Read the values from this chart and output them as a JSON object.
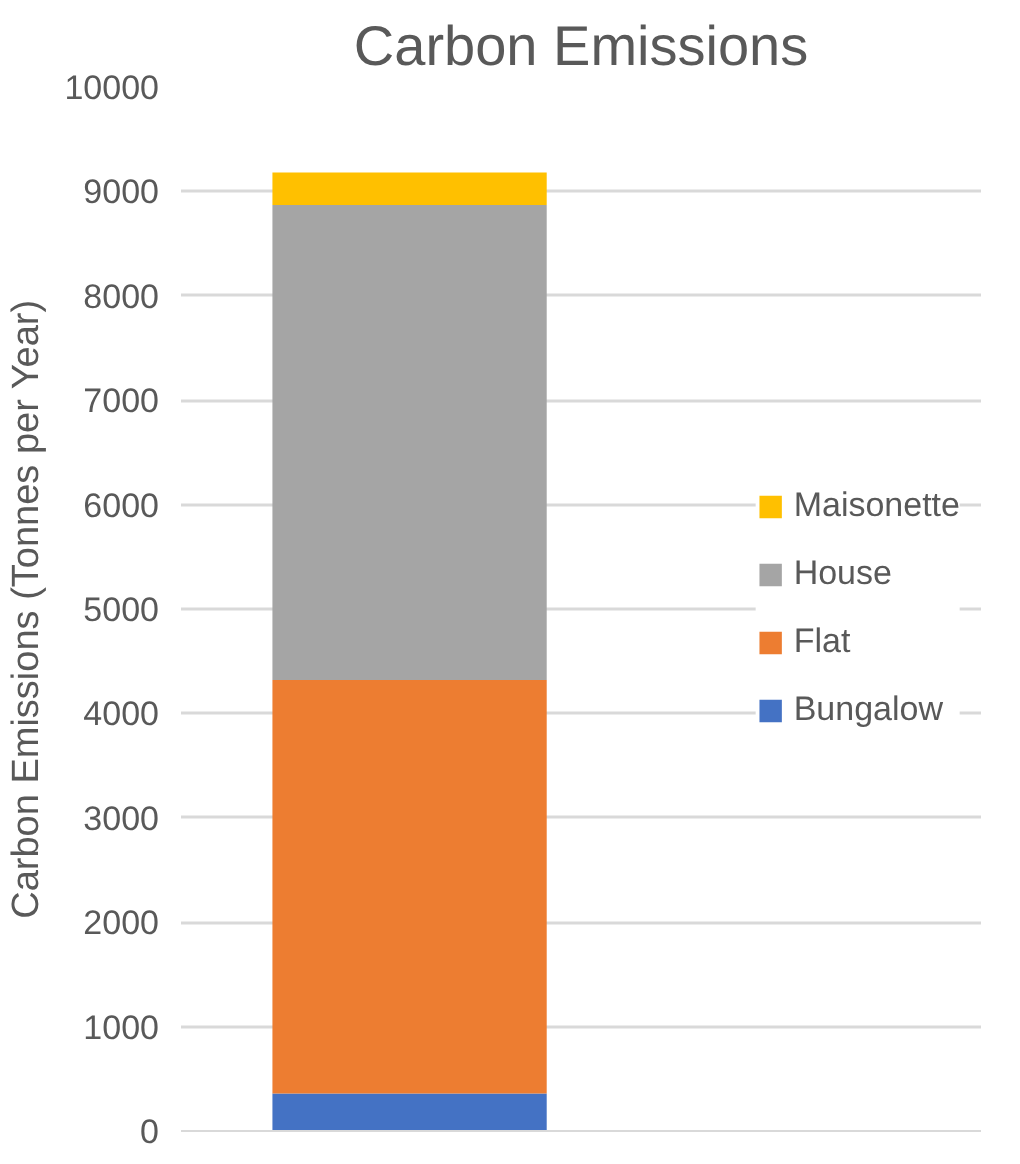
{
  "chart_data": {
    "type": "bar",
    "title": "Carbon Emissions",
    "ylabel": "Carbon Emissions (Tonnes per Year)",
    "categories": [
      null
    ],
    "stacked": true,
    "series": [
      {
        "name": "Bungalow",
        "color": "#4472c4",
        "values": [
          360
        ]
      },
      {
        "name": "Flat",
        "color": "#ed7d31",
        "values": [
          3960
        ]
      },
      {
        "name": "House",
        "color": "#a5a5a5",
        "values": [
          4550
        ]
      },
      {
        "name": "Maisonette",
        "color": "#ffc000",
        "values": [
          310
        ]
      }
    ],
    "ylim": [
      0,
      10000
    ],
    "yticks": [
      0,
      1000,
      2000,
      3000,
      4000,
      5000,
      6000,
      7000,
      8000,
      9000,
      10000
    ],
    "grid": "y",
    "legend": "right"
  }
}
